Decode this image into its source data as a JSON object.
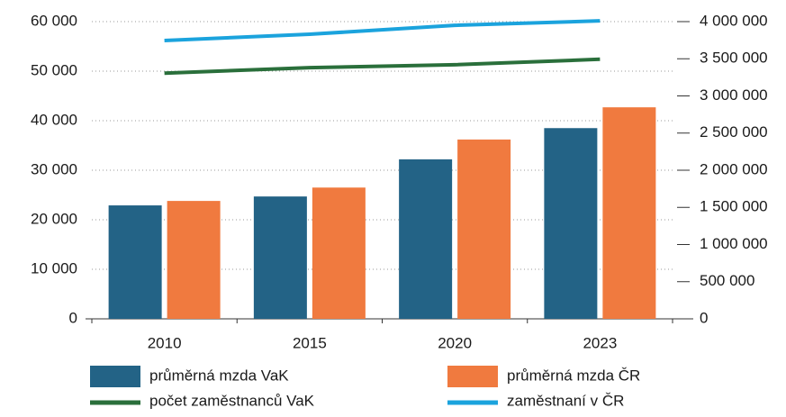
{
  "chart_data": {
    "type": "bar",
    "categories": [
      "2010",
      "2015",
      "2020",
      "2023"
    ],
    "series": [
      {
        "name": "průměrná mzda VaK",
        "color": "#236386",
        "type": "bar",
        "values": [
          22900,
          24700,
          32200,
          38500
        ]
      },
      {
        "name": "průměrná mzda ČR",
        "color": "#f07a3f",
        "type": "bar",
        "values": [
          23800,
          26500,
          36200,
          42700
        ]
      },
      {
        "name": "počet zaměstnanců VaK",
        "color": "#2a6f3b",
        "type": "line",
        "values": [
          49600,
          50700,
          51300,
          52400
        ]
      },
      {
        "name": "zaměstnaní v ČR",
        "color": "#1ba3dd",
        "type": "line",
        "axis": "y2",
        "values": [
          3745000,
          3830000,
          3950000,
          4010000
        ]
      }
    ],
    "ylim": [
      0,
      60000
    ],
    "yticks": [
      0,
      {
        "value": 10000,
        "label": "10 000"
      },
      {
        "value": 20000,
        "label": "20 000"
      },
      {
        "value": 30000,
        "label": "30 000"
      },
      {
        "value": 40000,
        "label": "40 000"
      },
      {
        "value": 50000,
        "label": "50 000"
      },
      {
        "value": 60000,
        "label": "60 000"
      }
    ],
    "y2lim": [
      0,
      4000000
    ],
    "y2ticks": [
      0,
      {
        "value": 500000,
        "label": "500 000"
      },
      {
        "value": 1000000,
        "label": "1 000 000"
      },
      {
        "value": 1500000,
        "label": "1 500 000"
      },
      {
        "value": 2000000,
        "label": "2 000 000"
      },
      {
        "value": 2500000,
        "label": "2 500 000"
      },
      {
        "value": 3000000,
        "label": "3 000 000"
      },
      {
        "value": 3500000,
        "label": "3 500 000"
      },
      {
        "value": 4000000,
        "label": "4 000 000"
      }
    ],
    "grid": true,
    "legend": "bottom"
  }
}
